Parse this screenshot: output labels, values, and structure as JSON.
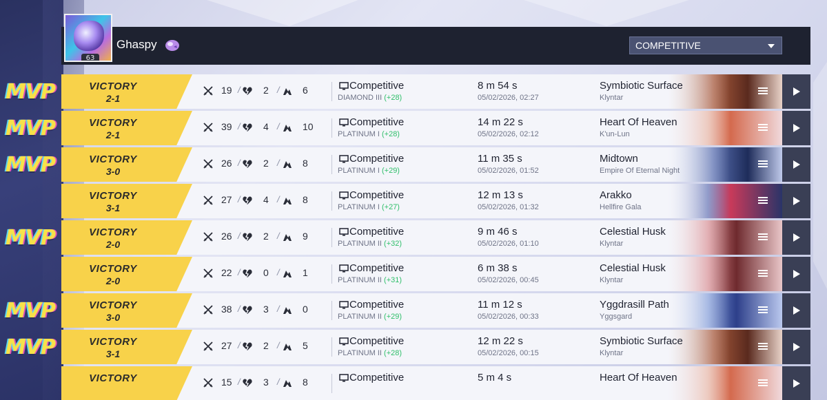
{
  "player": {
    "name": "Ghaspy",
    "level": "63"
  },
  "filter": {
    "mode": "COMPETITIVE"
  },
  "mvp_label": "MVP",
  "colors": {
    "victory": "#f8d24a",
    "rank_delta": "#2fbf6a",
    "header": "#1e2230",
    "play_button": "#3a3f55"
  },
  "icons": [
    "kills-icon",
    "deaths-icon",
    "assists-icon",
    "monitor-icon",
    "menu-icon",
    "play-icon",
    "chevron-down-icon",
    "badge-icon"
  ],
  "matches": [
    {
      "result": "VICTORY",
      "score": "2-1",
      "kills": "19",
      "deaths": "2",
      "assists": "6",
      "mode": "Competitive",
      "rank": "DIAMOND III",
      "delta": "(+28)",
      "duration": "8 m 54 s",
      "datetime": "05/02/2026, 02:27",
      "map": "Symbiotic Surface",
      "region": "Klyntar",
      "mvp": true
    },
    {
      "result": "VICTORY",
      "score": "2-1",
      "kills": "39",
      "deaths": "4",
      "assists": "10",
      "mode": "Competitive",
      "rank": "PLATINUM I",
      "delta": "(+28)",
      "duration": "14 m 22 s",
      "datetime": "05/02/2026, 02:12",
      "map": "Heart Of Heaven",
      "region": "K'un-Lun",
      "mvp": true
    },
    {
      "result": "VICTORY",
      "score": "3-0",
      "kills": "26",
      "deaths": "2",
      "assists": "8",
      "mode": "Competitive",
      "rank": "PLATINUM I",
      "delta": "(+29)",
      "duration": "11 m 35 s",
      "datetime": "05/02/2026, 01:52",
      "map": "Midtown",
      "region": "Empire Of Eternal Night",
      "mvp": true
    },
    {
      "result": "VICTORY",
      "score": "3-1",
      "kills": "27",
      "deaths": "4",
      "assists": "8",
      "mode": "Competitive",
      "rank": "PLATINUM I",
      "delta": "(+27)",
      "duration": "12 m 13 s",
      "datetime": "05/02/2026, 01:32",
      "map": "Arakko",
      "region": "Hellfire Gala",
      "mvp": false
    },
    {
      "result": "VICTORY",
      "score": "2-0",
      "kills": "26",
      "deaths": "2",
      "assists": "9",
      "mode": "Competitive",
      "rank": "PLATINUM II",
      "delta": "(+32)",
      "duration": "9 m 46 s",
      "datetime": "05/02/2026, 01:10",
      "map": "Celestial Husk",
      "region": "Klyntar",
      "mvp": true
    },
    {
      "result": "VICTORY",
      "score": "2-0",
      "kills": "22",
      "deaths": "0",
      "assists": "1",
      "mode": "Competitive",
      "rank": "PLATINUM II",
      "delta": "(+31)",
      "duration": "6 m 38 s",
      "datetime": "05/02/2026, 00:45",
      "map": "Celestial Husk",
      "region": "Klyntar",
      "mvp": false
    },
    {
      "result": "VICTORY",
      "score": "3-0",
      "kills": "38",
      "deaths": "3",
      "assists": "0",
      "mode": "Competitive",
      "rank": "PLATINUM II",
      "delta": "(+29)",
      "duration": "11 m 12 s",
      "datetime": "05/02/2026, 00:33",
      "map": "Yggdrasill Path",
      "region": "Yggsgard",
      "mvp": true
    },
    {
      "result": "VICTORY",
      "score": "3-1",
      "kills": "27",
      "deaths": "2",
      "assists": "5",
      "mode": "Competitive",
      "rank": "PLATINUM II",
      "delta": "(+28)",
      "duration": "12 m 22 s",
      "datetime": "05/02/2026, 00:15",
      "map": "Symbiotic Surface",
      "region": "Klyntar",
      "mvp": true
    },
    {
      "result": "VICTORY",
      "score": "",
      "kills": "15",
      "deaths": "3",
      "assists": "8",
      "mode": "Competitive",
      "rank": "",
      "delta": "",
      "duration": "5 m 4 s",
      "datetime": "",
      "map": "Heart Of Heaven",
      "region": "",
      "mvp": false
    }
  ]
}
